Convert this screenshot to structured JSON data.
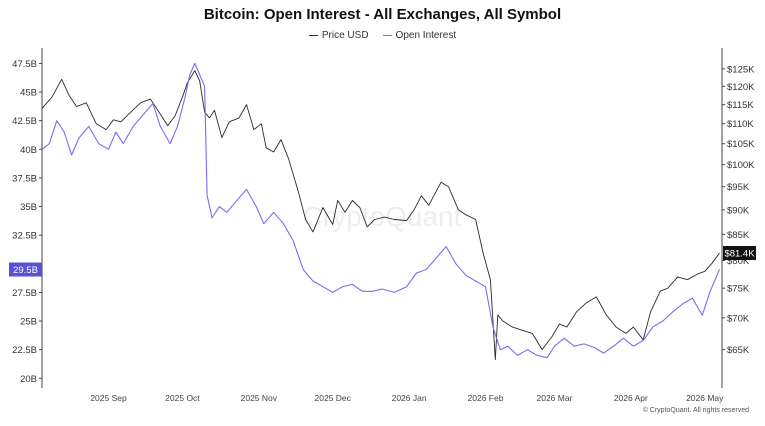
{
  "chart_data": {
    "type": "line",
    "title": "Bitcoin: Open Interest - All Exchanges, All Symbol",
    "legend_position": "top-center",
    "grid": false,
    "watermark": "CryptoQuant",
    "copyright": "© CryptoQuant. All rights reserved",
    "x_axis": {
      "range": [
        "2025-08-05",
        "2026-05-08"
      ],
      "ticks": [
        {
          "date": "2025-09-01",
          "label": "2025 Sep"
        },
        {
          "date": "2025-10-01",
          "label": "2025 Oct"
        },
        {
          "date": "2025-11-01",
          "label": "2025 Nov"
        },
        {
          "date": "2025-12-01",
          "label": "2025 Dec"
        },
        {
          "date": "2026-01-01",
          "label": "2026 Jan"
        },
        {
          "date": "2026-02-01",
          "label": "2026 Feb"
        },
        {
          "date": "2026-03-01",
          "label": "2026 Mar"
        },
        {
          "date": "2026-04-01",
          "label": "2026 Apr"
        },
        {
          "date": "2026-05-01",
          "label": "2026 May"
        }
      ]
    },
    "y_left": {
      "ylim": [
        19.5,
        48.5
      ],
      "ticks": [
        47.5,
        45,
        42.5,
        40,
        37.5,
        35,
        32.5,
        30,
        27.5,
        25,
        22.5,
        20
      ],
      "labels": [
        "47.5B",
        "45B",
        "42.5B",
        "40B",
        "37.5B",
        "35B",
        "32.5B",
        "",
        "27.5B",
        "25B",
        "22.5B",
        "20B"
      ],
      "current_label": "29.5B",
      "current_value": 29.5
    },
    "y_right": {
      "scale": "log",
      "ylim": [
        60000,
        130000
      ],
      "ticks": [
        125000,
        120000,
        115000,
        110000,
        105000,
        100000,
        95000,
        90000,
        85000,
        80000,
        75000,
        70000,
        65000
      ],
      "labels": [
        "$125K",
        "$120K",
        "$115K",
        "$110K",
        "$105K",
        "$100K",
        "$95K",
        "$90K",
        "$85K",
        "$80K",
        "$75K",
        "$70K",
        "$65K"
      ],
      "current_label": "$81.4K",
      "current_value": 81400
    },
    "series": [
      {
        "name": "Price USD",
        "axis": "right",
        "color": "#2b2b2b",
        "points": [
          [
            "2025-08-05",
            114000
          ],
          [
            "2025-08-09",
            117000
          ],
          [
            "2025-08-13",
            122000
          ],
          [
            "2025-08-16",
            117500
          ],
          [
            "2025-08-19",
            114500
          ],
          [
            "2025-08-23",
            115500
          ],
          [
            "2025-08-27",
            110000
          ],
          [
            "2025-08-31",
            108500
          ],
          [
            "2025-09-03",
            111000
          ],
          [
            "2025-09-06",
            110500
          ],
          [
            "2025-09-10",
            113000
          ],
          [
            "2025-09-14",
            115500
          ],
          [
            "2025-09-18",
            116500
          ],
          [
            "2025-09-22",
            112500
          ],
          [
            "2025-09-25",
            109500
          ],
          [
            "2025-09-28",
            112000
          ],
          [
            "2025-10-01",
            117000
          ],
          [
            "2025-10-03",
            121000
          ],
          [
            "2025-10-06",
            124500
          ],
          [
            "2025-10-08",
            121500
          ],
          [
            "2025-10-10",
            113000
          ],
          [
            "2025-10-12",
            111500
          ],
          [
            "2025-10-14",
            113500
          ],
          [
            "2025-10-17",
            106500
          ],
          [
            "2025-10-20",
            110500
          ],
          [
            "2025-10-24",
            111500
          ],
          [
            "2025-10-27",
            115000
          ],
          [
            "2025-10-30",
            108500
          ],
          [
            "2025-11-02",
            110000
          ],
          [
            "2025-11-04",
            104000
          ],
          [
            "2025-11-07",
            103000
          ],
          [
            "2025-11-10",
            106000
          ],
          [
            "2025-11-13",
            101500
          ],
          [
            "2025-11-17",
            94000
          ],
          [
            "2025-11-20",
            88000
          ],
          [
            "2025-11-23",
            85500
          ],
          [
            "2025-11-27",
            90500
          ],
          [
            "2025-12-01",
            87000
          ],
          [
            "2025-12-03",
            92000
          ],
          [
            "2025-12-06",
            89500
          ],
          [
            "2025-12-09",
            92000
          ],
          [
            "2025-12-12",
            90500
          ],
          [
            "2025-12-15",
            86500
          ],
          [
            "2025-12-18",
            88000
          ],
          [
            "2025-12-22",
            88500
          ],
          [
            "2025-12-26",
            88000
          ],
          [
            "2025-12-31",
            87800
          ],
          [
            "2026-01-03",
            90000
          ],
          [
            "2026-01-06",
            93000
          ],
          [
            "2026-01-09",
            91000
          ],
          [
            "2026-01-14",
            96000
          ],
          [
            "2026-01-17",
            95000
          ],
          [
            "2026-01-21",
            90000
          ],
          [
            "2026-01-24",
            89000
          ],
          [
            "2026-01-28",
            88000
          ],
          [
            "2026-01-31",
            81500
          ],
          [
            "2026-02-03",
            76500
          ],
          [
            "2026-02-05",
            63500
          ],
          [
            "2026-02-06",
            70500
          ],
          [
            "2026-02-08",
            69500
          ],
          [
            "2026-02-12",
            68500
          ],
          [
            "2026-02-16",
            68000
          ],
          [
            "2026-02-20",
            67500
          ],
          [
            "2026-02-24",
            65000
          ],
          [
            "2026-02-28",
            67000
          ],
          [
            "2026-03-03",
            69000
          ],
          [
            "2026-03-06",
            68500
          ],
          [
            "2026-03-10",
            71000
          ],
          [
            "2026-03-14",
            72500
          ],
          [
            "2026-03-18",
            73500
          ],
          [
            "2026-03-22",
            70500
          ],
          [
            "2026-03-26",
            68500
          ],
          [
            "2026-03-30",
            67500
          ],
          [
            "2026-04-02",
            68500
          ],
          [
            "2026-04-06",
            66500
          ],
          [
            "2026-04-09",
            71000
          ],
          [
            "2026-04-13",
            74500
          ],
          [
            "2026-04-16",
            75000
          ],
          [
            "2026-04-20",
            77000
          ],
          [
            "2026-04-24",
            76500
          ],
          [
            "2026-04-28",
            77500
          ],
          [
            "2026-05-01",
            78000
          ],
          [
            "2026-05-04",
            79500
          ],
          [
            "2026-05-07",
            81400
          ]
        ]
      },
      {
        "name": "Open Interest",
        "axis": "left",
        "color": "#7b6cf0",
        "points": [
          [
            "2025-08-05",
            40000
          ],
          [
            "2025-08-08",
            40500
          ],
          [
            "2025-08-11",
            42500
          ],
          [
            "2025-08-14",
            41500
          ],
          [
            "2025-08-17",
            39500
          ],
          [
            "2025-08-20",
            41000
          ],
          [
            "2025-08-24",
            42000
          ],
          [
            "2025-08-28",
            40500
          ],
          [
            "2025-09-01",
            40000
          ],
          [
            "2025-09-04",
            41500
          ],
          [
            "2025-09-07",
            40500
          ],
          [
            "2025-09-11",
            42000
          ],
          [
            "2025-09-15",
            43000
          ],
          [
            "2025-09-19",
            44000
          ],
          [
            "2025-09-22",
            42000
          ],
          [
            "2025-09-26",
            40500
          ],
          [
            "2025-09-29",
            42000
          ],
          [
            "2025-10-02",
            44500
          ],
          [
            "2025-10-04",
            46500
          ],
          [
            "2025-10-06",
            47500
          ],
          [
            "2025-10-08",
            46500
          ],
          [
            "2025-10-10",
            45500
          ],
          [
            "2025-10-11",
            36000
          ],
          [
            "2025-10-13",
            34000
          ],
          [
            "2025-10-16",
            35000
          ],
          [
            "2025-10-19",
            34500
          ],
          [
            "2025-10-23",
            35500
          ],
          [
            "2025-10-27",
            36500
          ],
          [
            "2025-10-31",
            35000
          ],
          [
            "2025-11-03",
            33500
          ],
          [
            "2025-11-07",
            34500
          ],
          [
            "2025-11-11",
            33500
          ],
          [
            "2025-11-15",
            32000
          ],
          [
            "2025-11-19",
            29500
          ],
          [
            "2025-11-23",
            28500
          ],
          [
            "2025-11-27",
            28000
          ],
          [
            "2025-12-01",
            27500
          ],
          [
            "2025-12-05",
            28000
          ],
          [
            "2025-12-09",
            28200
          ],
          [
            "2025-12-13",
            27600
          ],
          [
            "2025-12-17",
            27600
          ],
          [
            "2025-12-21",
            27800
          ],
          [
            "2025-12-26",
            27500
          ],
          [
            "2025-12-31",
            28000
          ],
          [
            "2026-01-04",
            29200
          ],
          [
            "2026-01-08",
            29500
          ],
          [
            "2026-01-12",
            30500
          ],
          [
            "2026-01-16",
            31500
          ],
          [
            "2026-01-20",
            30000
          ],
          [
            "2026-01-24",
            29000
          ],
          [
            "2026-01-28",
            28500
          ],
          [
            "2026-02-01",
            28000
          ],
          [
            "2026-02-04",
            24500
          ],
          [
            "2026-02-07",
            22500
          ],
          [
            "2026-02-10",
            22800
          ],
          [
            "2026-02-14",
            22000
          ],
          [
            "2026-02-18",
            22500
          ],
          [
            "2026-02-22",
            22000
          ],
          [
            "2026-02-26",
            21800
          ],
          [
            "2026-03-01",
            22800
          ],
          [
            "2026-03-05",
            23500
          ],
          [
            "2026-03-09",
            22800
          ],
          [
            "2026-03-13",
            23000
          ],
          [
            "2026-03-17",
            22700
          ],
          [
            "2026-03-21",
            22200
          ],
          [
            "2026-03-25",
            22800
          ],
          [
            "2026-03-29",
            23500
          ],
          [
            "2026-04-02",
            22800
          ],
          [
            "2026-04-06",
            23300
          ],
          [
            "2026-04-10",
            24500
          ],
          [
            "2026-04-14",
            25000
          ],
          [
            "2026-04-18",
            25800
          ],
          [
            "2026-04-22",
            26500
          ],
          [
            "2026-04-26",
            27000
          ],
          [
            "2026-04-30",
            25500
          ],
          [
            "2026-05-03",
            27500
          ],
          [
            "2026-05-07",
            29500
          ]
        ]
      }
    ]
  }
}
